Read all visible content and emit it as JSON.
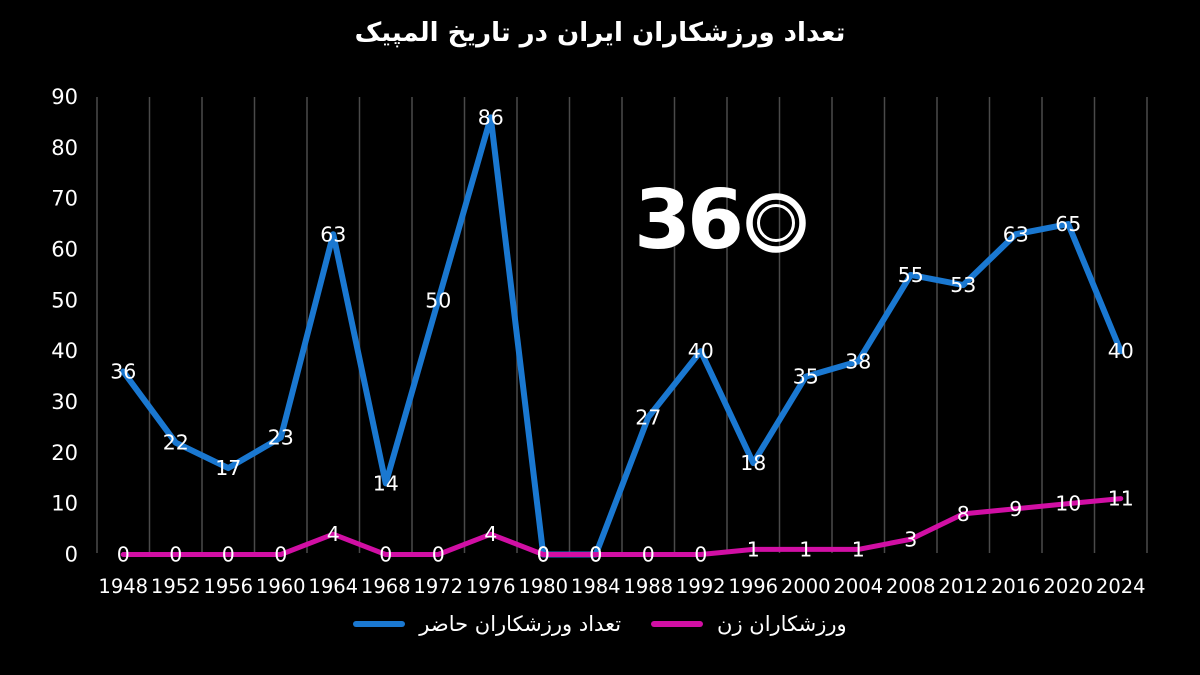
{
  "title": "تعداد ورزشکاران ایران در تاریخ المپیک",
  "logo": {
    "digits": "36",
    "alt": "360"
  },
  "colors": {
    "background": "#000000",
    "text": "#ffffff",
    "gridline": "#4a4a4a",
    "series_blue": "#1a78d1",
    "series_magenta": "#d10fa4"
  },
  "chart_data": {
    "type": "line",
    "title": "تعداد ورزشکاران ایران در تاریخ المپیک",
    "categories": [
      1948,
      1952,
      1956,
      1960,
      1964,
      1968,
      1972,
      1976,
      1980,
      1984,
      1988,
      1992,
      1996,
      2000,
      2004,
      2008,
      2012,
      2016,
      2020,
      2024
    ],
    "series": [
      {
        "name": "تعداد ورزشکاران حاضر",
        "color": "#1a78d1",
        "values": [
          36,
          22,
          17,
          23,
          63,
          14,
          50,
          86,
          0,
          0,
          27,
          40,
          18,
          35,
          38,
          55,
          53,
          63,
          65,
          40
        ]
      },
      {
        "name": "ورزشکاران زن",
        "color": "#d10fa4",
        "values": [
          0,
          0,
          0,
          0,
          4,
          0,
          0,
          4,
          0,
          0,
          0,
          0,
          1,
          1,
          1,
          3,
          8,
          9,
          10,
          11
        ]
      }
    ],
    "xlabel": "",
    "ylabel": "",
    "ylim": [
      0,
      90
    ],
    "yticks": [
      0,
      10,
      20,
      30,
      40,
      50,
      60,
      70,
      80,
      90
    ],
    "grid": "vertical-only",
    "data_labels": "centered-on-points",
    "legend_position": "bottom"
  },
  "legend": {
    "items": [
      {
        "label": "تعداد ورزشکاران حاضر",
        "color": "#1a78d1"
      },
      {
        "label": "ورزشکاران زن",
        "color": "#d10fa4"
      }
    ]
  }
}
